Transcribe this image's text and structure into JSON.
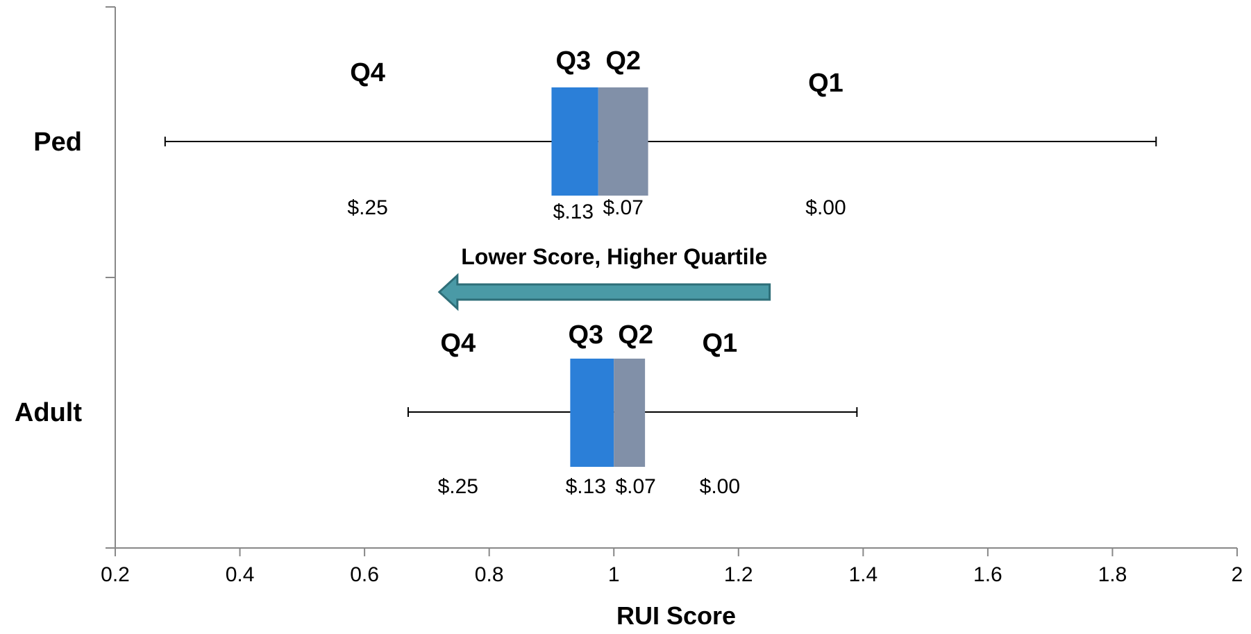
{
  "chart_data": {
    "type": "box",
    "xlabel": "RUI Score",
    "xlim": [
      0.2,
      2
    ],
    "xticks": [
      "0.2",
      "0.4",
      "0.6",
      "0.8",
      "1",
      "1.2",
      "1.4",
      "1.6",
      "1.8",
      "2"
    ],
    "categories": [
      "Ped",
      "Adult"
    ],
    "series": [
      {
        "name": "Ped",
        "min": 0.28,
        "q1": 0.9,
        "median": 0.975,
        "q3": 1.055,
        "max": 1.87,
        "quartile_labels": [
          {
            "label": "Q4",
            "price": "$.25",
            "x": 0.605
          },
          {
            "label": "Q3",
            "price": "$.13",
            "x": 0.935
          },
          {
            "label": "Q2",
            "price": "$.07",
            "x": 1.015
          },
          {
            "label": "Q1",
            "price": "$.00",
            "x": 1.34
          }
        ]
      },
      {
        "name": "Adult",
        "min": 0.67,
        "q1": 0.93,
        "median": 1.0,
        "q3": 1.05,
        "max": 1.39,
        "quartile_labels": [
          {
            "label": "Q4",
            "price": "$.25",
            "x": 0.75
          },
          {
            "label": "Q3",
            "price": "$.13",
            "x": 0.955
          },
          {
            "label": "Q2",
            "price": "$.07",
            "x": 1.035
          },
          {
            "label": "Q1",
            "price": "$.00",
            "x": 1.17
          }
        ]
      }
    ],
    "annotation": {
      "text": "Lower Score, Higher Quartile",
      "from_x": 1.25,
      "to_x": 0.72,
      "direction": "left"
    },
    "colors": {
      "lower_box": "#2b7fd8",
      "upper_box": "#8190a8",
      "arrow_fill": "#4a9aa6",
      "arrow_stroke": "#2e6e78",
      "axis": "#888888",
      "whisker": "#000000"
    },
    "grid": false
  }
}
